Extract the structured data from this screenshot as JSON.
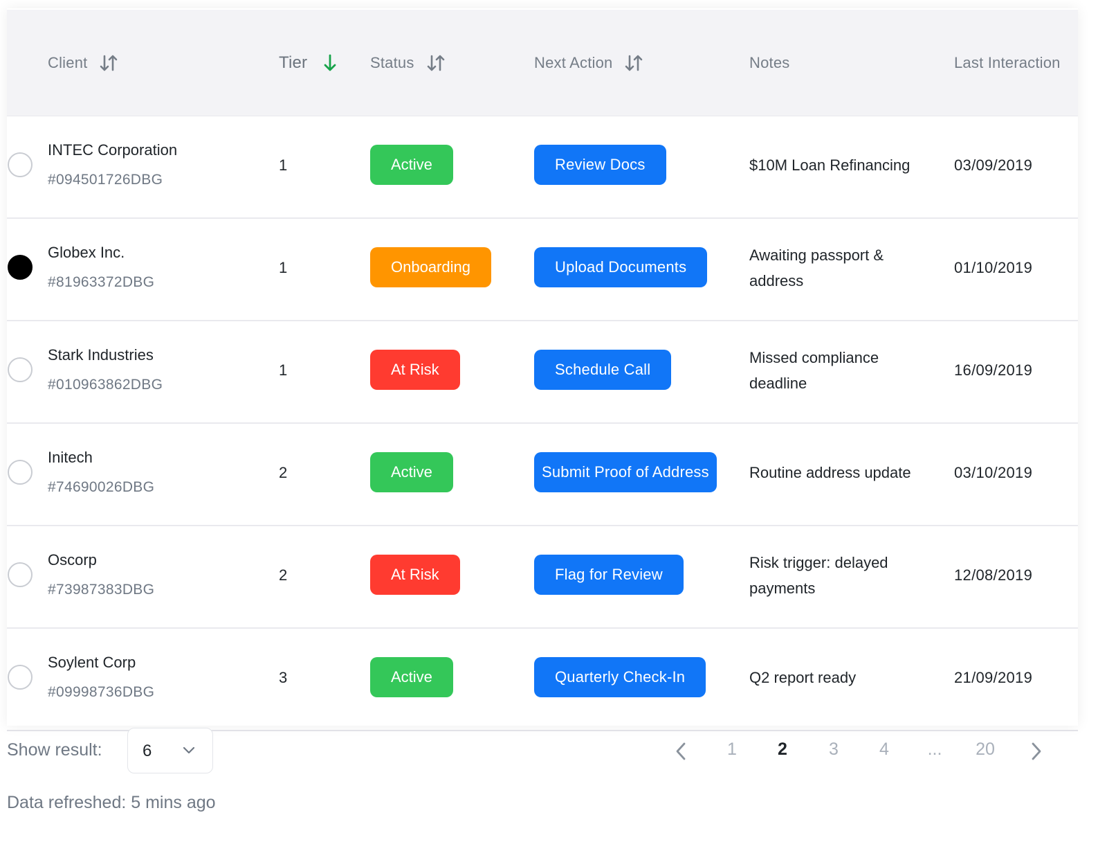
{
  "columns": {
    "client": "Client",
    "tier": "Tier",
    "status": "Status",
    "next_action": "Next Action",
    "notes": "Notes",
    "last_interaction": "Last Interaction"
  },
  "colors": {
    "active": "#34c759",
    "onboarding": "#ff9500",
    "at_risk": "#ff3b30",
    "action": "#1176f7",
    "sort_active": "#17a34a"
  },
  "rows": [
    {
      "name": "INTEC Corporation",
      "id": "#094501726DBG",
      "tier": "1",
      "status": "Active",
      "status_kind": "active",
      "action": "Review Docs",
      "notes": "$10M Loan Refinancing",
      "date": "03/09/2019",
      "selected": false
    },
    {
      "name": "Globex Inc.",
      "id": "#81963372DBG",
      "tier": "1",
      "status": "Onboarding",
      "status_kind": "onboarding",
      "action": "Upload Documents",
      "notes": "Awaiting passport & address",
      "date": "01/10/2019",
      "selected": true
    },
    {
      "name": "Stark Industries",
      "id": "#010963862DBG",
      "tier": "1",
      "status": "At Risk",
      "status_kind": "at_risk",
      "action": "Schedule Call",
      "notes": "Missed compliance deadline",
      "date": "16/09/2019",
      "selected": false
    },
    {
      "name": "Initech",
      "id": "#74690026DBG",
      "tier": "2",
      "status": "Active",
      "status_kind": "active",
      "action": "Submit Proof of Address",
      "notes": "Routine address update",
      "date": "03/10/2019",
      "selected": false
    },
    {
      "name": "Oscorp",
      "id": "#73987383DBG",
      "tier": "2",
      "status": "At Risk",
      "status_kind": "at_risk",
      "action": "Flag for Review",
      "notes": "Risk trigger: delayed payments",
      "date": "12/08/2019",
      "selected": false
    },
    {
      "name": "Soylent Corp",
      "id": "#09998736DBG",
      "tier": "3",
      "status": "Active",
      "status_kind": "active",
      "action": "Quarterly Check-In",
      "notes": "Q2 report ready",
      "date": "21/09/2019",
      "selected": false
    }
  ],
  "footer": {
    "show_result_label": "Show result:",
    "show_result_value": "6",
    "refreshed": "Data refreshed: 5 mins ago"
  },
  "pagination": {
    "pages": [
      "1",
      "2",
      "3",
      "4",
      "...",
      "20"
    ],
    "current": "2"
  },
  "icons": {
    "sort": "sort-arrows-icon",
    "sort_desc": "arrow-down-icon",
    "prev": "chevron-left-icon",
    "next": "chevron-right-icon",
    "dropdown": "chevron-down-icon"
  }
}
